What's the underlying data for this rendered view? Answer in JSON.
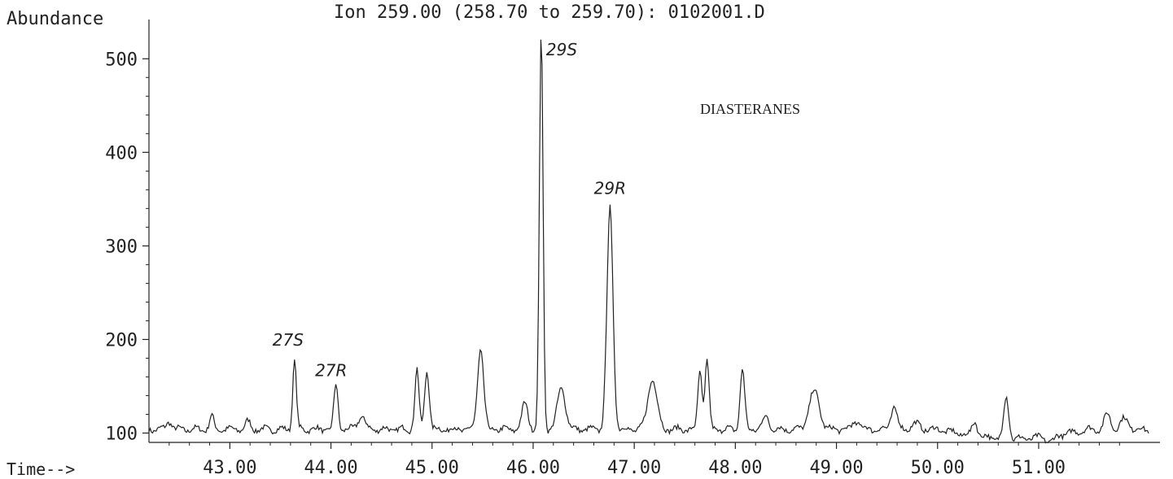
{
  "chart_data": {
    "type": "line",
    "title": "Ion 259.00 (258.70 to 259.70): 0102001.D",
    "ylabel": "Abundance",
    "xlabel": "Time-->",
    "annotation": "DIASTERANES",
    "xlim": [
      42.2,
      52.2
    ],
    "ylim": [
      90,
      535
    ],
    "y_ticks": [
      100,
      200,
      300,
      400,
      500
    ],
    "x_ticks": [
      43.0,
      44.0,
      45.0,
      46.0,
      47.0,
      48.0,
      49.0,
      50.0,
      51.0
    ],
    "y_tick_labels": [
      "100",
      "200",
      "300",
      "400",
      "500"
    ],
    "x_tick_labels": [
      "43.00",
      "44.00",
      "45.00",
      "46.00",
      "47.00",
      "48.00",
      "49.00",
      "50.00",
      "51.00"
    ],
    "peak_labels": [
      {
        "text": "27S",
        "x": 43.64,
        "y": 178
      },
      {
        "text": "27R",
        "x": 44.05,
        "y": 152
      },
      {
        "text": "29S",
        "x": 46.08,
        "y": 530
      },
      {
        "text": "29R",
        "x": 46.76,
        "y": 340
      }
    ],
    "baseline": 104,
    "peaks": [
      {
        "x": 42.4,
        "y": 113,
        "w": 0.025
      },
      {
        "x": 42.82,
        "y": 118,
        "w": 0.02
      },
      {
        "x": 43.18,
        "y": 112,
        "w": 0.025
      },
      {
        "x": 43.64,
        "y": 178,
        "w": 0.018
      },
      {
        "x": 44.05,
        "y": 152,
        "w": 0.02
      },
      {
        "x": 44.3,
        "y": 118,
        "w": 0.035
      },
      {
        "x": 44.85,
        "y": 168,
        "w": 0.02
      },
      {
        "x": 44.95,
        "y": 168,
        "w": 0.022
      },
      {
        "x": 45.48,
        "y": 190,
        "w": 0.03
      },
      {
        "x": 45.92,
        "y": 132,
        "w": 0.03
      },
      {
        "x": 46.08,
        "y": 530,
        "w": 0.018
      },
      {
        "x": 46.28,
        "y": 148,
        "w": 0.04
      },
      {
        "x": 46.76,
        "y": 340,
        "w": 0.03
      },
      {
        "x": 47.18,
        "y": 158,
        "w": 0.045
      },
      {
        "x": 47.65,
        "y": 168,
        "w": 0.02
      },
      {
        "x": 47.72,
        "y": 178,
        "w": 0.02
      },
      {
        "x": 48.07,
        "y": 168,
        "w": 0.022
      },
      {
        "x": 48.3,
        "y": 118,
        "w": 0.03
      },
      {
        "x": 48.78,
        "y": 145,
        "w": 0.05
      },
      {
        "x": 49.2,
        "y": 112,
        "w": 0.04
      },
      {
        "x": 49.57,
        "y": 128,
        "w": 0.03
      },
      {
        "x": 49.78,
        "y": 110,
        "w": 0.04
      },
      {
        "x": 50.37,
        "y": 120,
        "w": 0.025
      },
      {
        "x": 50.68,
        "y": 148,
        "w": 0.025
      },
      {
        "x": 51.12,
        "y": 98,
        "w": 0.04
      },
      {
        "x": 51.68,
        "y": 120,
        "w": 0.03
      },
      {
        "x": 51.85,
        "y": 115,
        "w": 0.04
      }
    ]
  }
}
